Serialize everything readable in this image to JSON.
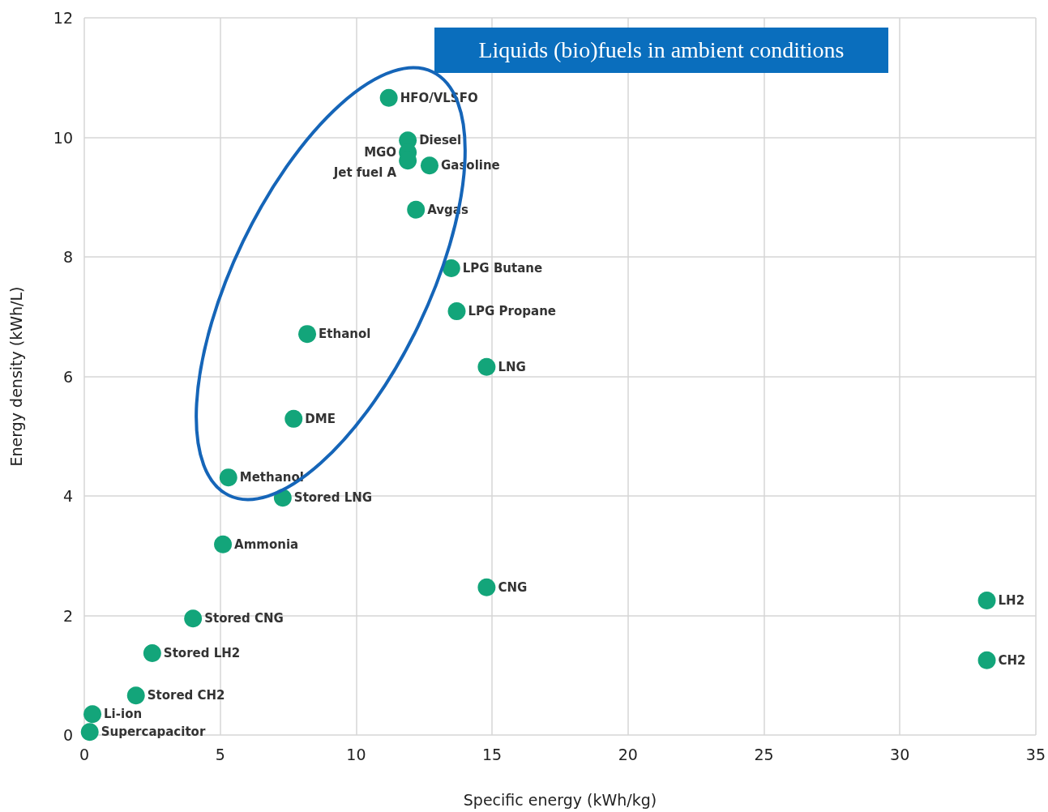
{
  "chart_data": {
    "type": "scatter",
    "xlabel": "Specific energy (kWh/kg)",
    "ylabel": "Energy density (kWh/L)",
    "x": [
      11.2,
      11.9,
      11.9,
      11.9,
      12.7,
      12.2,
      13.5,
      13.7,
      8.2,
      14.8,
      7.7,
      5.3,
      7.3,
      5.1,
      14.8,
      33.2,
      33.2,
      4.0,
      2.5,
      1.9,
      0.3,
      0.2
    ],
    "series": [
      {
        "color": "#13a57a",
        "values": [
          10.66,
          9.95,
          9.75,
          9.61,
          9.53,
          8.79,
          7.81,
          7.09,
          6.71,
          6.16,
          5.29,
          4.31,
          3.97,
          3.19,
          2.47,
          2.25,
          1.25,
          1.95,
          1.37,
          0.66,
          0.35,
          0.05
        ]
      }
    ],
    "xlim": [
      0,
      35
    ],
    "xticks": [
      0,
      5,
      10,
      15,
      20,
      25,
      30,
      35
    ],
    "ylim": [
      0,
      12
    ],
    "yticks": [
      0,
      2,
      4,
      6,
      8,
      10,
      12
    ],
    "grid": true,
    "marker": "circle",
    "annotations": [
      {
        "text": "HFO/VLSFO",
        "x": 11.2,
        "y": 10.66
      },
      {
        "text": "Diesel",
        "x": 11.9,
        "y": 9.95
      },
      {
        "text": "MGO",
        "x": 11.9,
        "y": 9.75
      },
      {
        "text": "Jet fuel A",
        "x": 11.9,
        "y": 9.61
      },
      {
        "text": "Gasoline",
        "x": 12.7,
        "y": 9.53
      },
      {
        "text": "Avgas",
        "x": 12.2,
        "y": 8.79
      },
      {
        "text": "LPG Butane",
        "x": 13.5,
        "y": 7.81
      },
      {
        "text": "LPG Propane",
        "x": 13.7,
        "y": 7.09
      },
      {
        "text": "Ethanol",
        "x": 8.2,
        "y": 6.71
      },
      {
        "text": "LNG",
        "x": 14.8,
        "y": 6.16
      },
      {
        "text": "DME",
        "x": 7.7,
        "y": 5.29
      },
      {
        "text": "Methanol",
        "x": 5.3,
        "y": 4.31
      },
      {
        "text": "Stored LNG",
        "x": 7.3,
        "y": 3.97
      },
      {
        "text": "Ammonia",
        "x": 5.1,
        "y": 3.19
      },
      {
        "text": "CNG",
        "x": 14.8,
        "y": 2.47
      },
      {
        "text": "LH2",
        "x": 33.2,
        "y": 2.25
      },
      {
        "text": "CH2",
        "x": 33.2,
        "y": 1.25
      },
      {
        "text": "Stored CNG",
        "x": 4.0,
        "y": 1.95
      },
      {
        "text": "Stored LH2",
        "x": 2.5,
        "y": 1.37
      },
      {
        "text": "Stored CH2",
        "x": 1.9,
        "y": 0.66
      },
      {
        "text": "Li-ion",
        "x": 0.3,
        "y": 0.35
      },
      {
        "text": "Supercapacitor",
        "x": 0.2,
        "y": 0.05
      },
      "Liquids (bio)fuels in ambient conditions"
    ]
  }
}
